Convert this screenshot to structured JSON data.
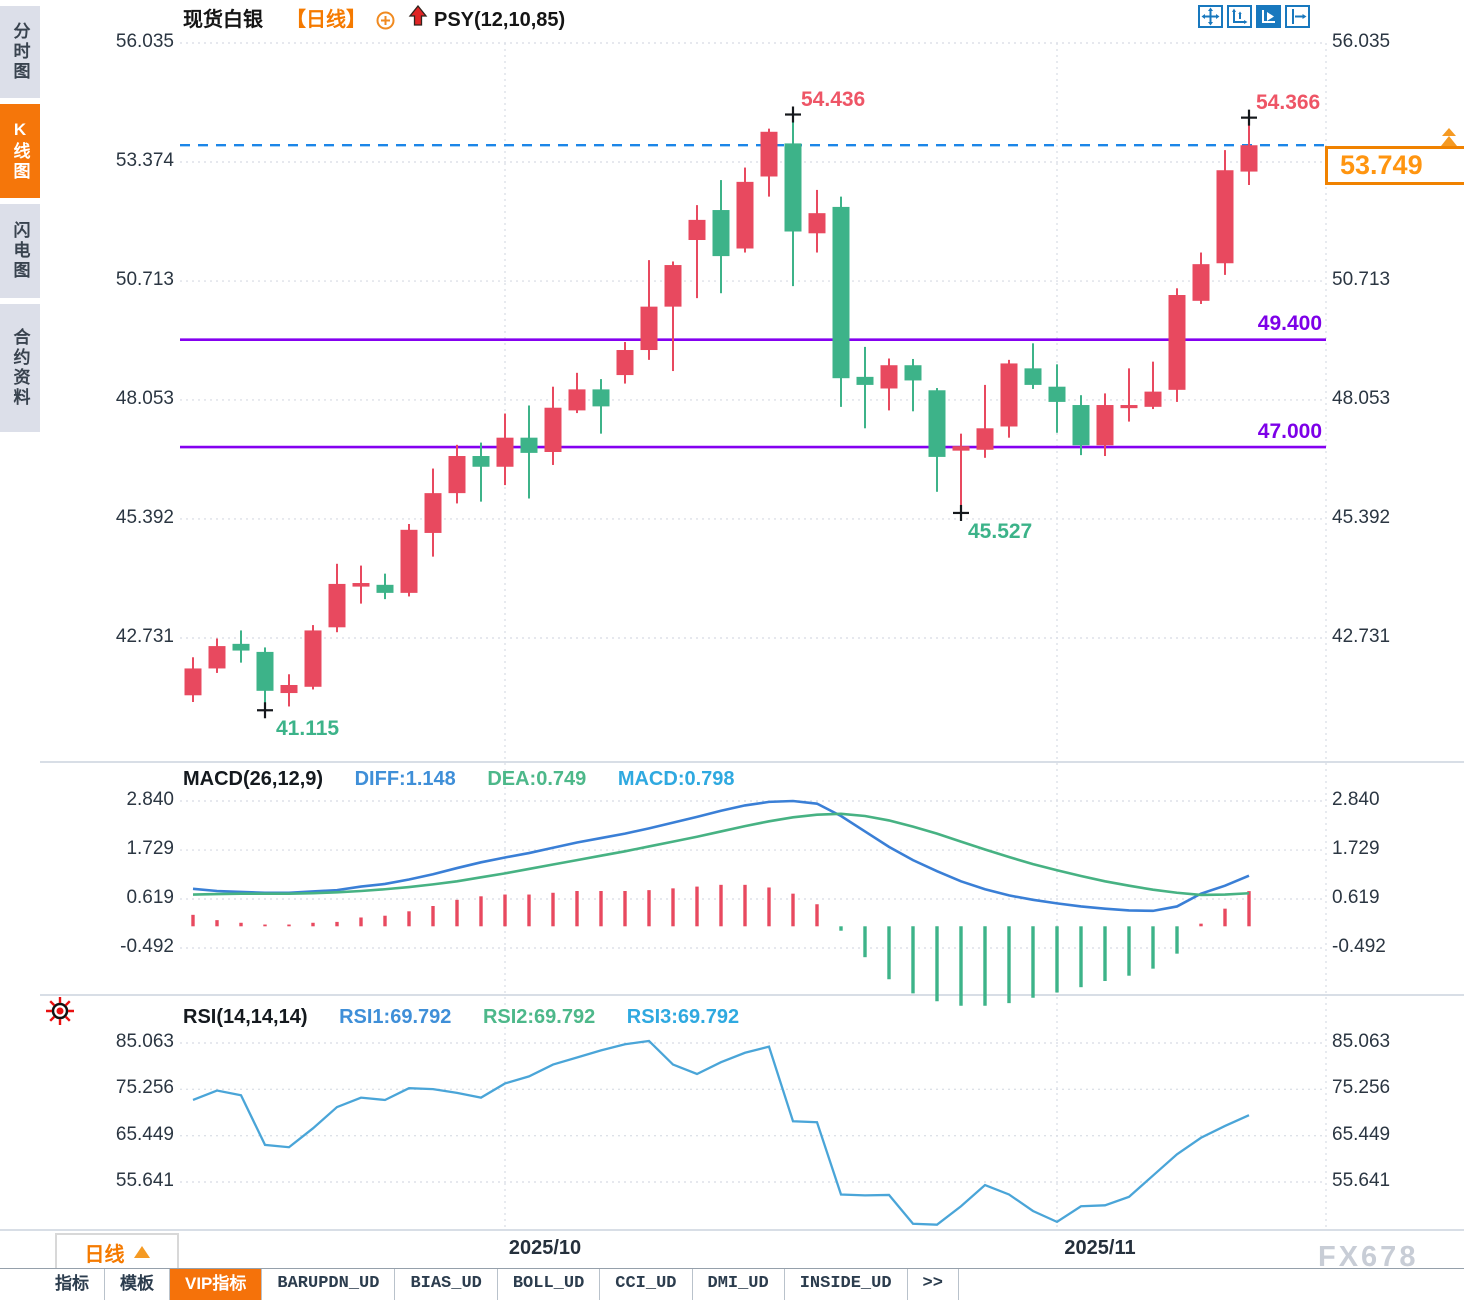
{
  "sidebar": {
    "items": [
      {
        "label": "分时图",
        "active": false
      },
      {
        "label": "K线图",
        "active": true
      },
      {
        "label": "闪电图",
        "active": false
      },
      {
        "label": "合约资料",
        "active": false
      }
    ]
  },
  "header": {
    "symbol": "现货白银",
    "period_tag": "【日线】",
    "indicator": "PSY(12,10,85)"
  },
  "icons": {
    "toolbar": [
      "crosshair-move-icon",
      "axis-range-icon",
      "auto-scale-icon",
      "go-to-latest-icon"
    ],
    "after_period": "circle-plus-icon",
    "signal": "red-up-arrow-icon",
    "rsi_panel": "sun-icon",
    "price_marker": "double-up-arrow-icon",
    "period_selector": "triangle-up-icon"
  },
  "annotations": {
    "hline1": "49.400",
    "hline2": "47.000",
    "last_price": "53.749"
  },
  "macd_header": {
    "title": "MACD(26,12,9)",
    "diff_label": "DIFF:1.148",
    "dea_label": "DEA:0.749",
    "macd_label": "MACD:0.798"
  },
  "rsi_header": {
    "title": "RSI(14,14,14)",
    "rsi1_label": "RSI1:69.792",
    "rsi2_label": "RSI2:69.792",
    "rsi3_label": "RSI3:69.792"
  },
  "x_axis": {
    "labels": [
      "2025/10",
      "2025/11"
    ],
    "period_selector": "日线"
  },
  "bottom_tabs": [
    {
      "label": "指标",
      "active": false,
      "mono": false
    },
    {
      "label": "模板",
      "active": false,
      "mono": false
    },
    {
      "label": "VIP指标",
      "active": true,
      "mono": false
    },
    {
      "label": "BARUPDN_UD",
      "active": false,
      "mono": true
    },
    {
      "label": "BIAS_UD",
      "active": false,
      "mono": true
    },
    {
      "label": "BOLL_UD",
      "active": false,
      "mono": true
    },
    {
      "label": "CCI_UD",
      "active": false,
      "mono": true
    },
    {
      "label": "DMI_UD",
      "active": false,
      "mono": true
    },
    {
      "label": "INSIDE_UD",
      "active": false,
      "mono": true
    },
    {
      "label": ">>",
      "active": false,
      "mono": true
    }
  ],
  "watermark": "FX678",
  "colors": {
    "up": "#e8495f",
    "down": "#3db389",
    "support_line": "#8400f0",
    "dashed_price_line": "#1c86e8",
    "grid": "#dde1e8",
    "separator": "#ccd4de",
    "diff_line": "#3a7fd6",
    "dea_line": "#47b283",
    "rsi_line": "#4aa5d8",
    "accent_orange": "#f5760a",
    "toolbar_blue": "#1878be"
  },
  "chart_data": [
    {
      "type": "candlestick",
      "title": "现货白银 日线",
      "yticks": [
        56.035,
        53.374,
        50.713,
        48.053,
        45.392,
        42.731
      ],
      "ylim": [
        41.0,
        56.5
      ],
      "support_lines": [
        49.4,
        47.0
      ],
      "last_price": 53.749,
      "dashed_line_price": 53.749,
      "x_gridline_indices": [
        13,
        36
      ],
      "marked_points": [
        {
          "index": 3,
          "price": 41.115,
          "label": "41.115"
        },
        {
          "index": 25,
          "price": 54.436,
          "label": "54.436"
        },
        {
          "index": 32,
          "price": 45.527,
          "label": "45.527"
        },
        {
          "index": 44,
          "price": 54.366,
          "label": "54.366"
        }
      ],
      "ohlc": [
        [
          41.45,
          42.3,
          41.3,
          42.05
        ],
        [
          42.05,
          42.72,
          41.95,
          42.55
        ],
        [
          42.6,
          42.9,
          42.18,
          42.45
        ],
        [
          42.42,
          42.52,
          41.115,
          41.55
        ],
        [
          41.5,
          41.92,
          41.2,
          41.68
        ],
        [
          41.64,
          43.02,
          41.58,
          42.9
        ],
        [
          42.97,
          44.39,
          42.86,
          43.94
        ],
        [
          43.88,
          44.35,
          43.5,
          43.96
        ],
        [
          43.92,
          44.17,
          43.6,
          43.74
        ],
        [
          43.74,
          45.28,
          43.66,
          45.15
        ],
        [
          45.08,
          46.52,
          44.55,
          45.97
        ],
        [
          45.97,
          47.05,
          45.74,
          46.8
        ],
        [
          46.8,
          47.1,
          45.78,
          46.56
        ],
        [
          46.56,
          47.75,
          46.15,
          47.21
        ],
        [
          47.21,
          47.93,
          45.85,
          46.87
        ],
        [
          46.89,
          48.35,
          46.6,
          47.88
        ],
        [
          47.82,
          48.66,
          47.76,
          48.29
        ],
        [
          48.29,
          48.52,
          47.3,
          47.91
        ],
        [
          48.61,
          49.35,
          48.42,
          49.17
        ],
        [
          49.17,
          51.18,
          48.95,
          50.14
        ],
        [
          50.14,
          51.15,
          48.7,
          51.07
        ],
        [
          51.63,
          52.41,
          50.33,
          52.08
        ],
        [
          52.3,
          52.97,
          50.44,
          51.27
        ],
        [
          51.44,
          53.25,
          51.35,
          52.93
        ],
        [
          53.05,
          54.12,
          52.6,
          54.05
        ],
        [
          53.79,
          54.436,
          50.6,
          51.82
        ],
        [
          51.78,
          52.75,
          51.35,
          52.23
        ],
        [
          52.37,
          52.6,
          47.9,
          48.54
        ],
        [
          48.57,
          49.24,
          47.42,
          48.39
        ],
        [
          48.31,
          48.98,
          47.82,
          48.83
        ],
        [
          48.83,
          48.97,
          47.8,
          48.49
        ],
        [
          48.27,
          48.32,
          46.0,
          46.78
        ],
        [
          46.92,
          47.3,
          45.527,
          47.02
        ],
        [
          46.94,
          48.39,
          46.76,
          47.42
        ],
        [
          47.46,
          48.95,
          47.21,
          48.87
        ],
        [
          48.76,
          49.32,
          48.3,
          48.39
        ],
        [
          48.35,
          48.85,
          47.32,
          48.01
        ],
        [
          47.94,
          48.16,
          46.82,
          47.04
        ],
        [
          47.04,
          48.2,
          46.8,
          47.94
        ],
        [
          47.87,
          48.76,
          47.57,
          47.94
        ],
        [
          47.9,
          48.91,
          47.85,
          48.24
        ],
        [
          48.28,
          50.55,
          48.01,
          50.4
        ],
        [
          50.27,
          51.35,
          50.2,
          51.09
        ],
        [
          51.11,
          53.64,
          50.85,
          53.19
        ],
        [
          53.16,
          54.366,
          52.86,
          53.749
        ]
      ]
    },
    {
      "type": "macd",
      "title": "MACD(26,12,9)",
      "yticks": [
        2.84,
        1.729,
        0.619,
        -0.492
      ],
      "diff": [
        0.85,
        0.8,
        0.78,
        0.76,
        0.76,
        0.79,
        0.82,
        0.9,
        0.96,
        1.06,
        1.18,
        1.32,
        1.45,
        1.56,
        1.66,
        1.78,
        1.9,
        2.0,
        2.1,
        2.22,
        2.35,
        2.48,
        2.62,
        2.74,
        2.82,
        2.84,
        2.78,
        2.5,
        2.15,
        1.8,
        1.5,
        1.25,
        1.02,
        0.84,
        0.7,
        0.6,
        0.52,
        0.45,
        0.4,
        0.36,
        0.35,
        0.45,
        0.74,
        0.92,
        1.148
      ],
      "dea": [
        0.72,
        0.73,
        0.74,
        0.74,
        0.74,
        0.75,
        0.77,
        0.8,
        0.84,
        0.89,
        0.95,
        1.02,
        1.11,
        1.2,
        1.3,
        1.4,
        1.5,
        1.6,
        1.7,
        1.81,
        1.92,
        2.03,
        2.15,
        2.27,
        2.38,
        2.47,
        2.53,
        2.55,
        2.5,
        2.4,
        2.26,
        2.1,
        1.92,
        1.74,
        1.57,
        1.41,
        1.27,
        1.14,
        1.02,
        0.92,
        0.83,
        0.76,
        0.71,
        0.72,
        0.749
      ],
      "hist": [
        0.26,
        0.14,
        0.08,
        0.04,
        0.04,
        0.08,
        0.1,
        0.2,
        0.24,
        0.34,
        0.46,
        0.6,
        0.68,
        0.72,
        0.72,
        0.76,
        0.8,
        0.8,
        0.8,
        0.82,
        0.86,
        0.9,
        0.94,
        0.94,
        0.88,
        0.74,
        0.5,
        -0.1,
        -0.7,
        -1.2,
        -1.52,
        -1.7,
        -1.8,
        -1.8,
        -1.74,
        -1.62,
        -1.5,
        -1.38,
        -1.24,
        -1.12,
        -0.96,
        -0.62,
        0.06,
        0.4,
        0.798
      ]
    },
    {
      "type": "rsi",
      "title": "RSI(14,14,14)",
      "yticks": [
        85.063,
        75.256,
        65.449,
        55.641
      ],
      "values": [
        73,
        75,
        74,
        63.5,
        63,
        67,
        71.5,
        73.5,
        73,
        75.5,
        75.3,
        74.5,
        73.5,
        76.5,
        78,
        80.5,
        82,
        83.5,
        84.8,
        85.5,
        80.5,
        78.5,
        81,
        83,
        84.3,
        68.5,
        68.3,
        53,
        52.8,
        52.9,
        46.8,
        46.6,
        50.5,
        55,
        53,
        49.5,
        47.2,
        50.5,
        50.7,
        52.5,
        57,
        61.5,
        65,
        67.5,
        69.792
      ]
    }
  ]
}
